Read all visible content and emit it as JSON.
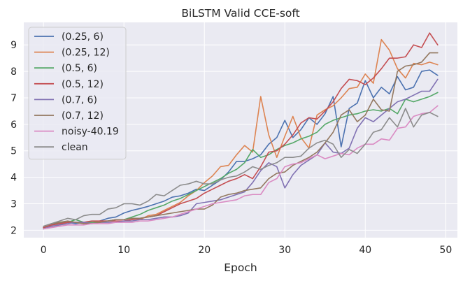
{
  "chart_data": {
    "type": "line",
    "title": "BiLSTM Valid CCE-soft",
    "xlabel": "Epoch",
    "ylabel": "",
    "xlim": [
      -2.45,
      51.45
    ],
    "ylim": [
      1.72,
      9.85
    ],
    "xticks": [
      0,
      10,
      20,
      30,
      40,
      50
    ],
    "yticks": [
      2,
      3,
      4,
      5,
      6,
      7,
      8,
      9
    ],
    "grid": true,
    "legend": "upper left",
    "background": "#eaeaf2",
    "x": [
      0,
      1,
      2,
      3,
      4,
      5,
      6,
      7,
      8,
      9,
      10,
      11,
      12,
      13,
      14,
      15,
      16,
      17,
      18,
      19,
      20,
      21,
      22,
      23,
      24,
      25,
      26,
      27,
      28,
      29,
      30,
      31,
      32,
      33,
      34,
      35,
      36,
      37,
      38,
      39,
      40,
      41,
      42,
      43,
      44,
      45,
      46,
      47,
      48,
      49
    ],
    "series": [
      {
        "name": "(0.25, 6)",
        "color": "#4c72b0",
        "values": [
          2.1,
          2.2,
          2.25,
          2.3,
          2.25,
          2.3,
          2.3,
          2.35,
          2.45,
          2.5,
          2.65,
          2.75,
          2.82,
          2.9,
          3.0,
          3.1,
          3.25,
          3.3,
          3.4,
          3.55,
          3.5,
          3.7,
          3.9,
          4.2,
          4.6,
          4.6,
          4.7,
          4.85,
          5.25,
          5.5,
          6.15,
          5.5,
          5.8,
          6.25,
          6.0,
          6.4,
          7.05,
          5.15,
          6.6,
          6.8,
          7.65,
          7.0,
          7.4,
          7.15,
          7.8,
          7.3,
          7.4,
          8.0,
          8.05,
          7.85
        ]
      },
      {
        "name": "(0.25, 12)",
        "color": "#dd8452",
        "values": [
          2.05,
          2.15,
          2.2,
          2.3,
          2.3,
          2.25,
          2.3,
          2.35,
          2.35,
          2.4,
          2.4,
          2.45,
          2.4,
          2.55,
          2.6,
          2.75,
          2.9,
          3.05,
          3.3,
          3.5,
          3.8,
          4.05,
          4.4,
          4.45,
          4.85,
          5.2,
          4.95,
          7.05,
          5.6,
          4.75,
          5.55,
          6.3,
          5.5,
          5.1,
          6.35,
          6.55,
          6.7,
          7.0,
          7.35,
          7.4,
          7.9,
          7.55,
          9.2,
          8.8,
          8.1,
          7.75,
          8.3,
          8.25,
          8.35,
          8.25
        ]
      },
      {
        "name": "(0.5, 6)",
        "color": "#55a868",
        "values": [
          2.1,
          2.2,
          2.3,
          2.3,
          2.4,
          2.3,
          2.3,
          2.3,
          2.35,
          2.4,
          2.4,
          2.5,
          2.6,
          2.75,
          2.85,
          2.95,
          3.1,
          3.2,
          3.35,
          3.5,
          3.65,
          3.8,
          3.95,
          4.15,
          4.3,
          4.55,
          5.05,
          4.75,
          4.85,
          5.05,
          5.2,
          5.3,
          5.45,
          5.55,
          5.7,
          6.0,
          6.15,
          6.25,
          6.35,
          6.4,
          6.5,
          6.55,
          6.5,
          6.6,
          6.4,
          6.95,
          6.85,
          6.95,
          7.05,
          7.2
        ]
      },
      {
        "name": "(0.5, 12)",
        "color": "#c44e52",
        "values": [
          2.1,
          2.2,
          2.25,
          2.3,
          2.3,
          2.3,
          2.35,
          2.35,
          2.35,
          2.35,
          2.35,
          2.4,
          2.45,
          2.5,
          2.55,
          2.7,
          2.85,
          3.0,
          3.1,
          3.2,
          3.4,
          3.55,
          3.7,
          3.85,
          3.95,
          4.1,
          3.95,
          4.4,
          4.95,
          5.0,
          5.25,
          5.6,
          6.05,
          6.25,
          6.2,
          6.5,
          6.85,
          7.35,
          7.7,
          7.65,
          7.5,
          7.75,
          8.1,
          8.5,
          8.5,
          8.55,
          9.0,
          8.9,
          9.45,
          9.0
        ]
      },
      {
        "name": "(0.7, 6)",
        "color": "#8172b3",
        "values": [
          2.05,
          2.15,
          2.2,
          2.25,
          2.3,
          2.3,
          2.25,
          2.3,
          2.3,
          2.3,
          2.35,
          2.35,
          2.4,
          2.4,
          2.45,
          2.5,
          2.5,
          2.55,
          2.65,
          3.0,
          3.05,
          3.1,
          3.15,
          3.25,
          3.35,
          3.45,
          3.8,
          4.25,
          4.55,
          4.4,
          3.6,
          4.1,
          4.45,
          4.65,
          4.85,
          5.3,
          4.95,
          4.9,
          5.1,
          5.85,
          6.25,
          6.1,
          6.35,
          6.6,
          6.85,
          6.95,
          7.1,
          7.25,
          7.25,
          7.7
        ]
      },
      {
        "name": "(0.7, 12)",
        "color": "#937860",
        "values": [
          2.15,
          2.25,
          2.3,
          2.35,
          2.3,
          2.25,
          2.25,
          2.3,
          2.35,
          2.4,
          2.4,
          2.45,
          2.45,
          2.5,
          2.55,
          2.6,
          2.65,
          2.7,
          2.75,
          2.8,
          2.8,
          2.95,
          3.25,
          3.35,
          3.4,
          3.5,
          3.55,
          3.6,
          3.95,
          4.15,
          4.2,
          4.45,
          4.6,
          4.75,
          4.95,
          5.3,
          5.7,
          6.35,
          6.55,
          6.1,
          6.35,
          6.95,
          6.55,
          6.5,
          8.0,
          8.2,
          8.25,
          8.35,
          8.7,
          8.7
        ]
      },
      {
        "name": "noisy-40.19",
        "color": "#da8bc3",
        "values": [
          2.05,
          2.1,
          2.15,
          2.2,
          2.2,
          2.2,
          2.25,
          2.25,
          2.25,
          2.3,
          2.3,
          2.3,
          2.35,
          2.35,
          2.4,
          2.45,
          2.5,
          2.6,
          2.7,
          2.8,
          2.9,
          3.0,
          3.05,
          3.1,
          3.15,
          3.3,
          3.35,
          3.35,
          3.8,
          3.95,
          4.4,
          4.5,
          4.55,
          4.7,
          4.85,
          4.7,
          4.8,
          4.9,
          4.85,
          5.1,
          5.25,
          5.25,
          5.45,
          5.4,
          5.85,
          5.9,
          6.3,
          6.4,
          6.45,
          6.7
        ]
      },
      {
        "name": "clean",
        "color": "#8c8c8c",
        "values": [
          2.15,
          2.25,
          2.35,
          2.45,
          2.4,
          2.55,
          2.6,
          2.6,
          2.8,
          2.85,
          3.0,
          3.0,
          2.95,
          3.1,
          3.35,
          3.3,
          3.5,
          3.7,
          3.75,
          3.85,
          3.75,
          3.75,
          3.9,
          4.0,
          4.05,
          4.2,
          4.4,
          4.3,
          4.45,
          4.55,
          4.75,
          4.75,
          4.8,
          5.1,
          5.3,
          5.4,
          5.25,
          4.75,
          5.05,
          4.9,
          5.25,
          5.7,
          5.8,
          6.25,
          5.9,
          6.6,
          5.9,
          6.35,
          6.45,
          6.3
        ]
      }
    ]
  }
}
